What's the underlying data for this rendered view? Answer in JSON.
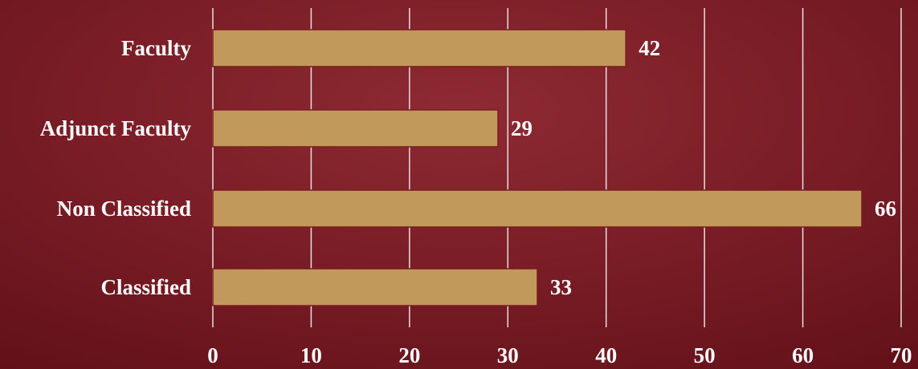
{
  "chart_data": {
    "type": "bar",
    "orientation": "horizontal",
    "title": "",
    "xlabel": "",
    "ylabel": "",
    "categories": [
      "Faculty",
      "Adjunct Faculty",
      "Non Classified",
      "Classified"
    ],
    "values": [
      42,
      29,
      66,
      33
    ],
    "xlim": [
      0,
      70
    ],
    "x_ticks": [
      "0",
      "10",
      "20",
      "30",
      "40",
      "50",
      "60",
      "70"
    ],
    "grid": "vertical",
    "legend": "none",
    "data_labels": true,
    "colors": {
      "bar_fill": "#c19a5b",
      "bar_border": "#7a1a22",
      "text": "#ffffff",
      "grid": "#e8dede"
    }
  }
}
